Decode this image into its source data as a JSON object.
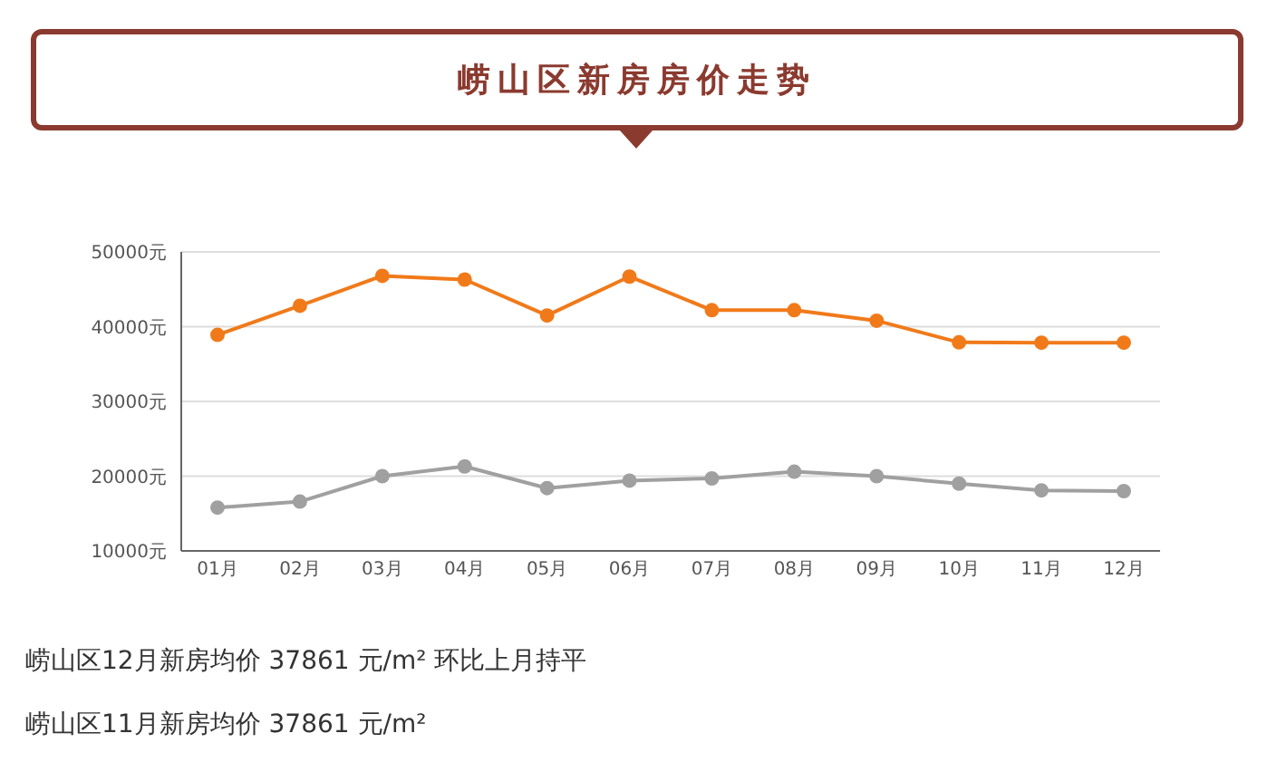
{
  "chart_data": {
    "type": "line",
    "title": "崂山区新房房价走势",
    "categories": [
      "01月",
      "02月",
      "03月",
      "04月",
      "05月",
      "06月",
      "07月",
      "08月",
      "09月",
      "10月",
      "11月",
      "12月"
    ],
    "series": [
      {
        "color": "#f07a1a",
        "values": [
          38900,
          42800,
          46800,
          46300,
          41500,
          46700,
          42200,
          42200,
          40800,
          37900,
          37861,
          37861
        ]
      },
      {
        "color": "#a0a0a0",
        "values": [
          15800,
          16600,
          20000,
          21300,
          18400,
          19400,
          19700,
          20600,
          20000,
          19000,
          18100,
          18000
        ]
      }
    ],
    "ylim": [
      10000,
      50000
    ],
    "yticks": [
      {
        "value": 10000,
        "label": "10000元"
      },
      {
        "value": 20000,
        "label": "20000元"
      },
      {
        "value": 30000,
        "label": "30000元"
      },
      {
        "value": 40000,
        "label": "40000元"
      },
      {
        "value": 50000,
        "label": "50000元"
      }
    ],
    "grid": "y",
    "marker": "circle",
    "annotations": [
      "崂山区12月新房均价 37861 元/m² 环比上月持平",
      "崂山区11月新房均价 37861 元/m²"
    ]
  }
}
